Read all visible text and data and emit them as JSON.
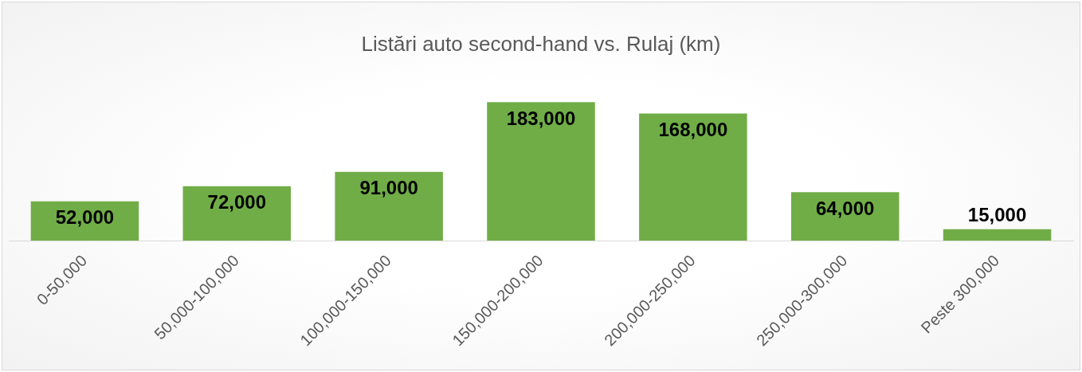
{
  "chart_data": {
    "type": "bar",
    "title": "Listări auto second-hand vs. Rulaj (km)",
    "categories": [
      "0-50,000",
      "50,000-100,000",
      "100,000-150,000",
      "150,000-200,000",
      "200,000-250,000",
      "250,000-300,000",
      "Peste 300,000"
    ],
    "values": [
      52000,
      72000,
      91000,
      183000,
      168000,
      64000,
      15000
    ],
    "color": "#70ad47",
    "value_labels": [
      "52,000",
      "72,000",
      "91,000",
      "183,000",
      "168,000",
      "64,000",
      "15,000"
    ],
    "grid": false,
    "legend": false
  }
}
